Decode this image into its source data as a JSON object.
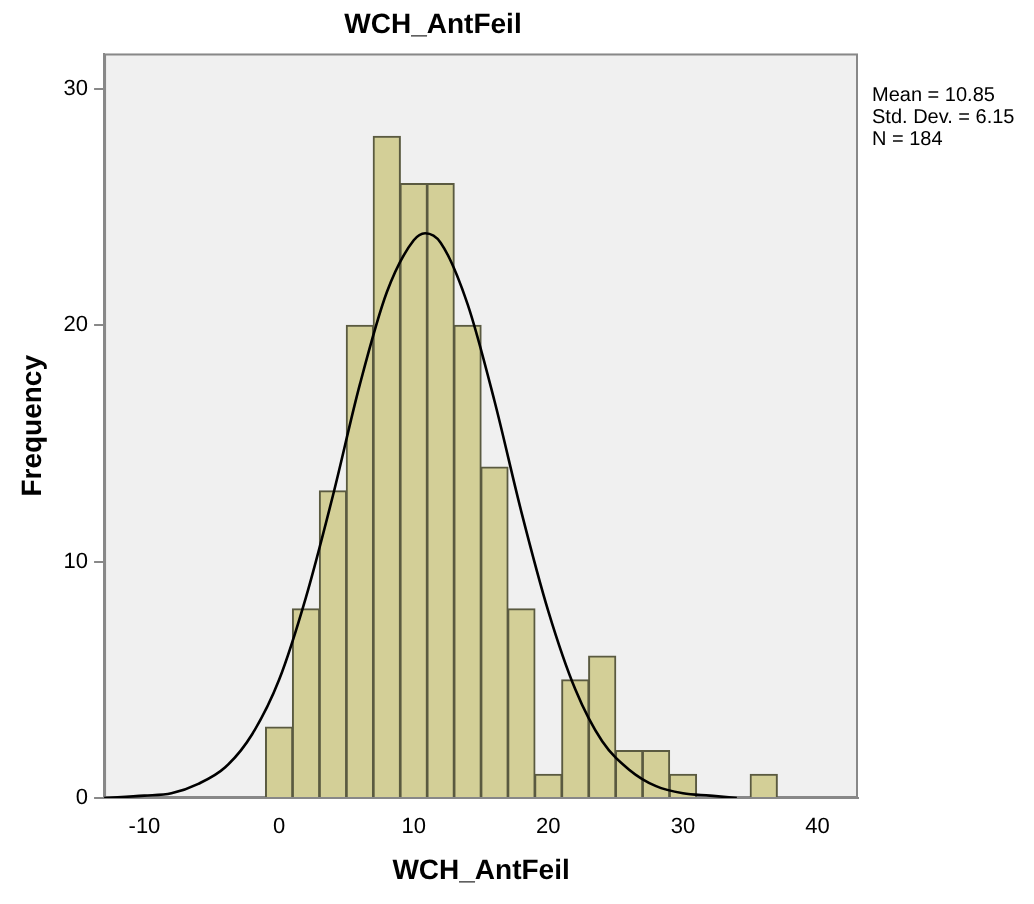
{
  "chart_data": {
    "type": "histogram",
    "title": "WCH_AntFeil",
    "xlabel": "WCH_AntFeil",
    "ylabel": "Frequency",
    "bins": [
      -1,
      1,
      3,
      5,
      7,
      9,
      11,
      13,
      15,
      17,
      19,
      21,
      23,
      25,
      27,
      29,
      31,
      33,
      35,
      37
    ],
    "series": [
      {
        "type": "histogram",
        "color": "#d3cf97",
        "values": [
          3,
          8,
          13,
          20,
          28,
          26,
          26,
          20,
          14,
          8,
          1,
          5,
          6,
          2,
          2,
          1,
          0,
          0,
          1
        ]
      },
      {
        "type": "line",
        "color": "#000000",
        "x": [
          -13,
          -10,
          -8,
          -6,
          -4,
          -2,
          0,
          2,
          4,
          6,
          8,
          10,
          10.85,
          12,
          14,
          16,
          18,
          20,
          22,
          24,
          26,
          28,
          30,
          32,
          34
        ],
        "values": [
          0,
          0.1,
          0.2,
          0.6,
          1.3,
          2.7,
          5,
          8.5,
          12.8,
          17.5,
          21.4,
          23.6,
          23.9,
          23.5,
          20.9,
          16.8,
          12.1,
          7.9,
          4.6,
          2.4,
          1.2,
          0.5,
          0.2,
          0.1,
          0
        ]
      }
    ],
    "xlim": [
      -13,
      43
    ],
    "xticks": [
      -10,
      0,
      10,
      20,
      30,
      40
    ],
    "ylim": [
      0,
      31.5
    ],
    "yticks": [
      0,
      10,
      20,
      30
    ],
    "grid": false,
    "legend": false,
    "marker": "none",
    "annotations": [
      "Mean = 10.85",
      "Std. Dev. = 6.15",
      "N = 184"
    ]
  }
}
